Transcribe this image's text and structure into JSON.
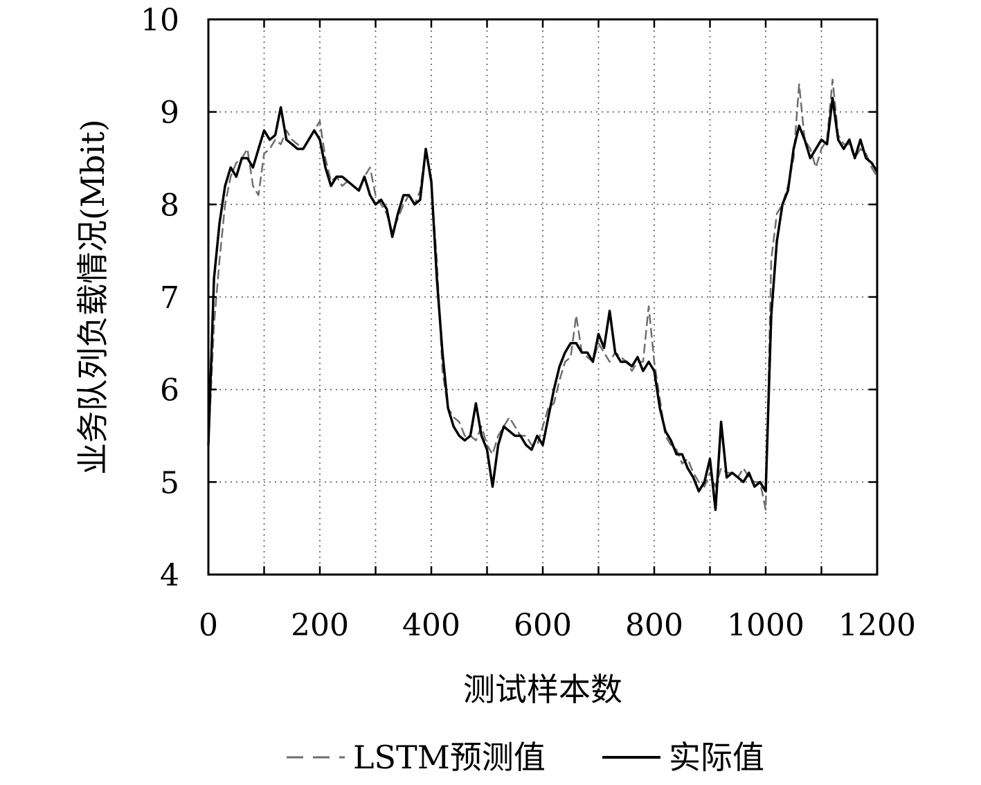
{
  "chart_data": {
    "type": "line",
    "title": "",
    "xlabel": "测试样本数",
    "ylabel": "业务队列负载情况(Mbit)",
    "xlim": [
      0,
      1200
    ],
    "ylim": [
      4,
      10
    ],
    "xticks": [
      0,
      200,
      400,
      600,
      800,
      1000,
      1200
    ],
    "yticks": [
      4,
      5,
      6,
      7,
      8,
      9,
      10
    ],
    "grid": true,
    "legend_position": "bottom",
    "series": [
      {
        "name": "LSTM预测值",
        "style": "dashed",
        "color": "#6e6e6e",
        "x": [
          0,
          10,
          20,
          30,
          40,
          50,
          60,
          70,
          80,
          90,
          100,
          110,
          120,
          130,
          140,
          150,
          160,
          170,
          180,
          190,
          200,
          210,
          220,
          230,
          240,
          250,
          260,
          270,
          280,
          290,
          300,
          310,
          320,
          330,
          340,
          350,
          360,
          370,
          380,
          390,
          400,
          410,
          420,
          430,
          440,
          450,
          460,
          470,
          480,
          490,
          500,
          510,
          520,
          530,
          540,
          550,
          560,
          570,
          580,
          590,
          600,
          610,
          620,
          630,
          640,
          650,
          660,
          670,
          680,
          690,
          700,
          710,
          720,
          730,
          740,
          750,
          760,
          770,
          780,
          790,
          800,
          810,
          820,
          830,
          840,
          850,
          860,
          870,
          880,
          890,
          900,
          910,
          920,
          930,
          940,
          950,
          960,
          970,
          980,
          990,
          1000,
          1010,
          1020,
          1030,
          1040,
          1050,
          1060,
          1070,
          1080,
          1090,
          1100,
          1110,
          1120,
          1130,
          1140,
          1150,
          1160,
          1170,
          1180,
          1190,
          1200
        ],
        "values": [
          5.4,
          6.7,
          7.4,
          8.0,
          8.3,
          8.45,
          8.5,
          8.6,
          8.2,
          8.1,
          8.55,
          8.6,
          8.7,
          8.65,
          8.8,
          8.7,
          8.65,
          8.6,
          8.7,
          8.8,
          8.9,
          8.5,
          8.25,
          8.3,
          8.2,
          8.25,
          8.2,
          8.15,
          8.3,
          8.4,
          8.1,
          8.0,
          7.9,
          7.7,
          7.85,
          8.0,
          8.1,
          8.0,
          8.15,
          8.6,
          8.2,
          7.4,
          6.2,
          5.8,
          5.7,
          5.65,
          5.5,
          5.5,
          5.45,
          5.6,
          5.4,
          5.3,
          5.5,
          5.6,
          5.7,
          5.6,
          5.5,
          5.5,
          5.4,
          5.4,
          5.6,
          5.8,
          5.85,
          6.1,
          6.3,
          6.35,
          6.8,
          6.4,
          6.35,
          6.3,
          6.5,
          6.4,
          6.3,
          6.4,
          6.35,
          6.3,
          6.2,
          6.3,
          6.3,
          6.9,
          6.3,
          5.9,
          5.5,
          5.4,
          5.35,
          5.2,
          5.25,
          5.1,
          5.0,
          4.95,
          5.1,
          4.95,
          5.15,
          5.1,
          5.1,
          5.05,
          5.15,
          5.05,
          5.0,
          5.0,
          4.7,
          7.4,
          7.9,
          8.0,
          8.2,
          8.5,
          9.3,
          8.7,
          8.6,
          8.4,
          8.6,
          8.7,
          9.35,
          8.75,
          8.65,
          8.65,
          8.5,
          8.6,
          8.55,
          8.4,
          8.3
        ]
      },
      {
        "name": "实际值",
        "style": "solid",
        "color": "#000000",
        "x": [
          0,
          10,
          20,
          30,
          40,
          50,
          60,
          70,
          80,
          90,
          100,
          110,
          120,
          130,
          140,
          150,
          160,
          170,
          180,
          190,
          200,
          210,
          220,
          230,
          240,
          250,
          260,
          270,
          280,
          290,
          300,
          310,
          320,
          330,
          340,
          350,
          360,
          370,
          380,
          390,
          400,
          410,
          420,
          430,
          440,
          450,
          460,
          470,
          480,
          490,
          500,
          510,
          520,
          530,
          540,
          550,
          560,
          570,
          580,
          590,
          600,
          610,
          620,
          630,
          640,
          650,
          660,
          670,
          680,
          690,
          700,
          710,
          720,
          730,
          740,
          750,
          760,
          770,
          780,
          790,
          800,
          810,
          820,
          830,
          840,
          850,
          860,
          870,
          880,
          890,
          900,
          910,
          920,
          930,
          940,
          950,
          960,
          970,
          980,
          990,
          1000,
          1010,
          1020,
          1030,
          1040,
          1050,
          1060,
          1070,
          1080,
          1090,
          1100,
          1110,
          1120,
          1130,
          1140,
          1150,
          1160,
          1170,
          1180,
          1190,
          1200
        ],
        "values": [
          5.4,
          7.2,
          7.8,
          8.2,
          8.4,
          8.3,
          8.5,
          8.5,
          8.4,
          8.6,
          8.8,
          8.7,
          8.75,
          9.05,
          8.7,
          8.65,
          8.6,
          8.6,
          8.7,
          8.8,
          8.7,
          8.4,
          8.2,
          8.3,
          8.3,
          8.25,
          8.2,
          8.15,
          8.3,
          8.1,
          8.0,
          8.05,
          7.95,
          7.65,
          7.9,
          8.1,
          8.1,
          8.0,
          8.05,
          8.6,
          8.25,
          7.2,
          6.4,
          5.8,
          5.6,
          5.5,
          5.45,
          5.5,
          5.85,
          5.5,
          5.35,
          4.95,
          5.4,
          5.6,
          5.55,
          5.5,
          5.5,
          5.4,
          5.35,
          5.5,
          5.4,
          5.7,
          6.0,
          6.25,
          6.4,
          6.5,
          6.5,
          6.4,
          6.4,
          6.3,
          6.6,
          6.45,
          6.85,
          6.4,
          6.3,
          6.3,
          6.25,
          6.35,
          6.2,
          6.3,
          6.2,
          5.8,
          5.55,
          5.45,
          5.3,
          5.3,
          5.15,
          5.05,
          4.9,
          5.0,
          5.25,
          4.7,
          5.65,
          5.05,
          5.1,
          5.05,
          5.0,
          5.1,
          4.95,
          5.0,
          4.9,
          6.8,
          7.6,
          8.0,
          8.15,
          8.6,
          8.85,
          8.7,
          8.5,
          8.6,
          8.7,
          8.65,
          9.15,
          8.7,
          8.6,
          8.7,
          8.5,
          8.7,
          8.5,
          8.45,
          8.35
        ]
      }
    ]
  }
}
